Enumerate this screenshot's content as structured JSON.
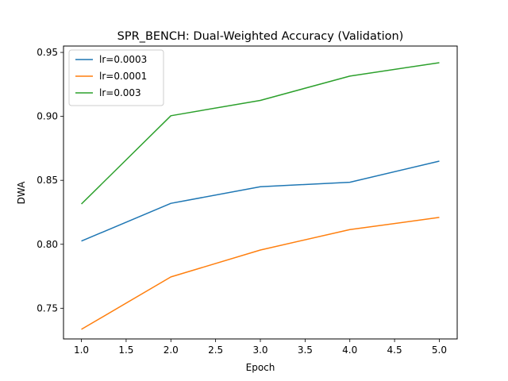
{
  "chart_data": {
    "type": "line",
    "title": "SPR_BENCH: Dual-Weighted Accuracy (Validation)",
    "xlabel": "Epoch",
    "ylabel": "DWA",
    "x": [
      1.0,
      2.0,
      3.0,
      4.0,
      5.0
    ],
    "xlim": [
      0.8,
      5.2
    ],
    "ylim": [
      0.726,
      0.955
    ],
    "xticks": [
      "1.0",
      "1.5",
      "2.0",
      "2.5",
      "3.0",
      "3.5",
      "4.0",
      "4.5",
      "5.0"
    ],
    "yticks": [
      "0.75",
      "0.80",
      "0.85",
      "0.90",
      "0.95"
    ],
    "grid": false,
    "legend_position": "top-left",
    "series": [
      {
        "name": "lr=0.0003",
        "color": "#1f77b4",
        "values": [
          0.8025,
          0.832,
          0.845,
          0.8485,
          0.865
        ]
      },
      {
        "name": "lr=0.0001",
        "color": "#ff7f0e",
        "values": [
          0.7335,
          0.7745,
          0.7955,
          0.8115,
          0.821
        ]
      },
      {
        "name": "lr=0.003",
        "color": "#2ca02c",
        "values": [
          0.8315,
          0.9005,
          0.9125,
          0.9315,
          0.942
        ]
      }
    ]
  }
}
